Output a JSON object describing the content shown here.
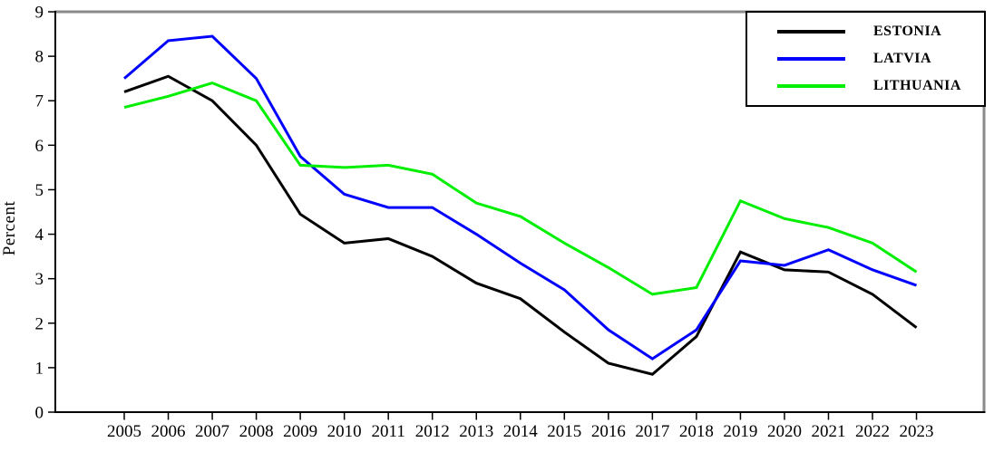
{
  "chart_data": {
    "type": "line",
    "title": "",
    "xlabel": "",
    "ylabel": "Percent",
    "ylim": [
      0,
      9
    ],
    "y_ticks": [
      0,
      1,
      2,
      3,
      4,
      5,
      6,
      7,
      8,
      9
    ],
    "grid": false,
    "legend_position": "top-right",
    "x": [
      2005,
      2006,
      2007,
      2008,
      2009,
      2010,
      2011,
      2012,
      2013,
      2014,
      2015,
      2016,
      2017,
      2018,
      2019,
      2020,
      2021,
      2022,
      2023
    ],
    "series": [
      {
        "name": "ESTONIA",
        "color": "#000000",
        "values": [
          7.2,
          7.55,
          7.0,
          6.0,
          4.45,
          3.8,
          3.9,
          3.5,
          2.9,
          2.55,
          1.8,
          1.1,
          0.85,
          1.7,
          3.6,
          3.2,
          3.15,
          2.65,
          1.9
        ]
      },
      {
        "name": "LATVIA",
        "color": "#0000ff",
        "values": [
          7.5,
          8.35,
          8.45,
          7.5,
          5.75,
          4.9,
          4.6,
          4.6,
          4.0,
          3.35,
          2.75,
          1.85,
          1.2,
          1.85,
          3.4,
          3.3,
          3.65,
          3.2,
          2.85
        ]
      },
      {
        "name": "LITHUANIA",
        "color": "#00ee00",
        "values": [
          6.85,
          7.1,
          7.4,
          7.0,
          5.55,
          5.5,
          5.55,
          5.35,
          4.7,
          4.4,
          3.8,
          3.25,
          2.65,
          2.8,
          4.75,
          4.35,
          4.15,
          3.8,
          3.15
        ]
      }
    ],
    "axis_colors": {
      "left_bottom_border": "#000000",
      "top_right_border": "#8a8a8a",
      "tick_label_color": "#000000"
    }
  }
}
